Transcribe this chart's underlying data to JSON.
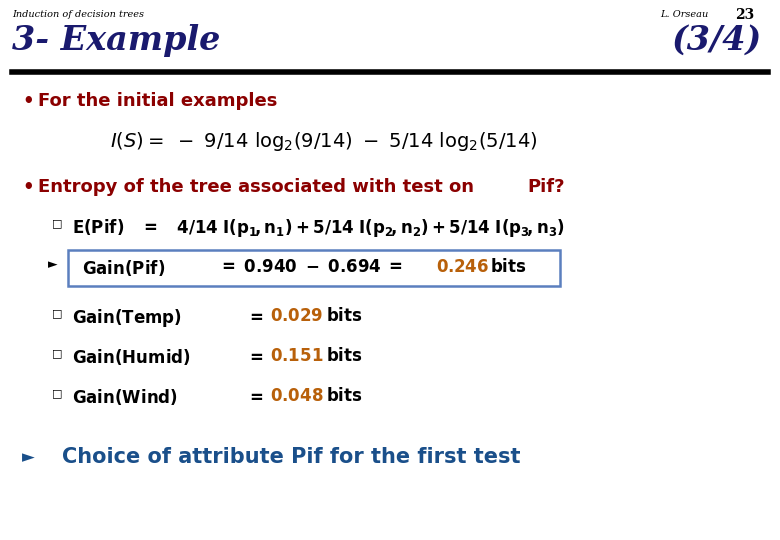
{
  "bg_color": "#ffffff",
  "header_text": "Induction of decision trees",
  "author": "L. Orseau",
  "page_num": "23",
  "title": "3- Example",
  "subtitle": "(3/4)",
  "dark_red": "#8B0000",
  "orange_val": "#B8600A",
  "blue_title": "#1a1a6e",
  "cyan_blue": "#1a4f8a",
  "black": "#000000",
  "box_edge": "#5B7FBE",
  "bullet1": "For the initial examples",
  "bullet2_part1": "Entropy of the tree associated with test on",
  "bullet2_pif": "Pif?",
  "conclusion": "Choice of attribute Pif for the first test"
}
